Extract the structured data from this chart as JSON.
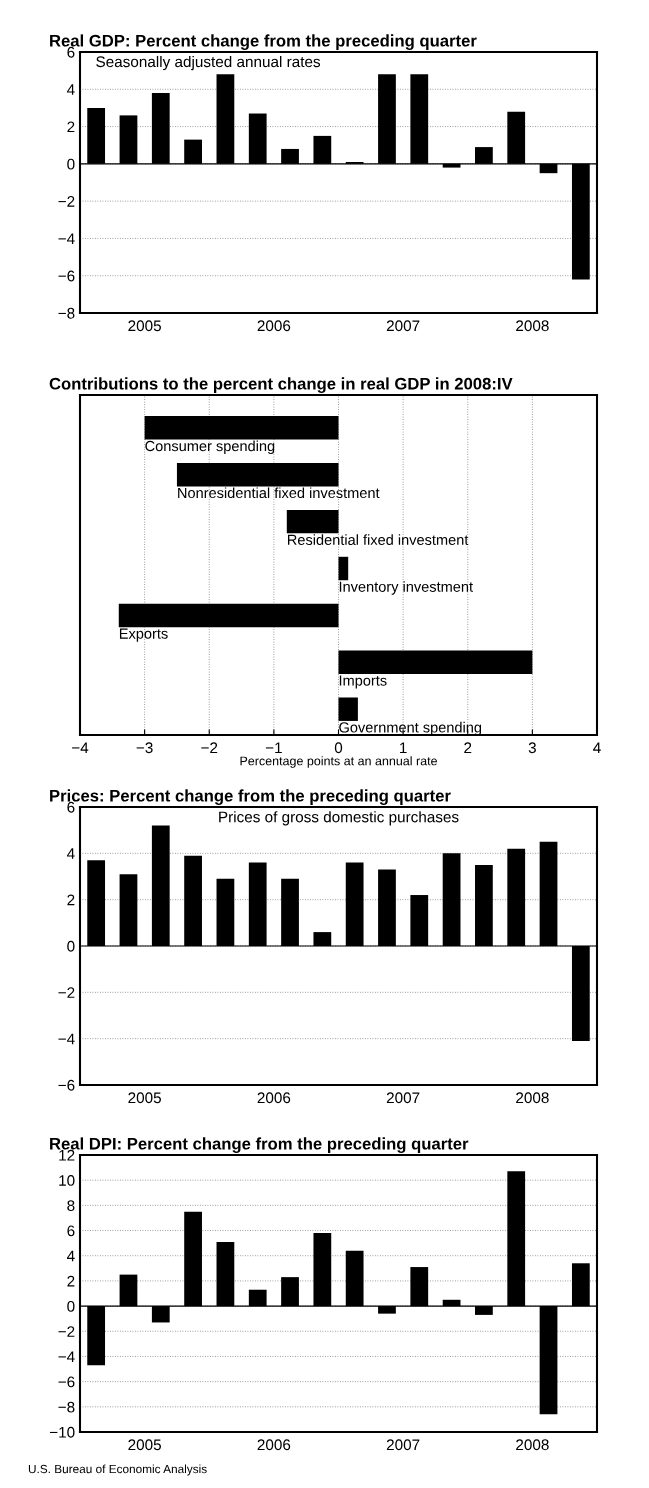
{
  "chart_data": [
    {
      "type": "bar",
      "title": "Real GDP: Percent change from the preceding quarter",
      "annotations": [
        "Seasonally adjusted annual rates"
      ],
      "x": [
        2005.125,
        2005.375,
        2005.625,
        2005.875,
        2006.125,
        2006.375,
        2006.625,
        2006.875,
        2007.125,
        2007.375,
        2007.625,
        2007.875,
        2008.125,
        2008.375,
        2008.625,
        2008.875
      ],
      "values": [
        3.0,
        2.6,
        3.8,
        1.3,
        4.8,
        2.7,
        0.8,
        1.5,
        0.1,
        4.8,
        4.8,
        -0.2,
        0.9,
        2.8,
        -0.5,
        -6.2
      ],
      "color": "#000000",
      "xlim": [
        2005,
        2009
      ],
      "xticks": [
        {
          "value": 2005.5,
          "label": "2005"
        },
        {
          "value": 2006.5,
          "label": "2006"
        },
        {
          "value": 2007.5,
          "label": "2007"
        },
        {
          "value": 2008.5,
          "label": "2008"
        }
      ],
      "ylim": [
        -8,
        6
      ],
      "yticks": [
        -8,
        -6,
        -4,
        -2,
        0,
        2,
        4,
        6
      ],
      "grid": "y",
      "legend": false
    },
    {
      "type": "bar",
      "orientation": "horizontal",
      "title": "Contributions to the percent change in real GDP in 2008:IV",
      "xlabel": "Percentage points at an annual rate",
      "categories": [
        "Consumer spending",
        "Nonresidential fixed investment",
        "Residential fixed investment",
        "Inventory investment",
        "Exports",
        "Imports",
        "Government spending"
      ],
      "values": [
        -3.0,
        -2.5,
        -0.8,
        0.15,
        -3.4,
        3.0,
        0.3
      ],
      "color": "#000000",
      "xlim": [
        -4,
        4
      ],
      "xticks": [
        -4,
        -3,
        -2,
        -1,
        0,
        1,
        2,
        3,
        4
      ],
      "grid": "x",
      "tick_labels": "x",
      "legend": false
    },
    {
      "type": "bar",
      "title": "Prices: Percent change from the preceding quarter",
      "annotations": [
        "Prices of gross domestic purchases"
      ],
      "x": [
        2005.125,
        2005.375,
        2005.625,
        2005.875,
        2006.125,
        2006.375,
        2006.625,
        2006.875,
        2007.125,
        2007.375,
        2007.625,
        2007.875,
        2008.125,
        2008.375,
        2008.625,
        2008.875
      ],
      "values": [
        3.7,
        3.1,
        5.2,
        3.9,
        2.9,
        3.6,
        2.9,
        0.6,
        3.6,
        3.3,
        2.2,
        4.0,
        3.5,
        4.2,
        4.5,
        -4.1
      ],
      "color": "#000000",
      "xlim": [
        2005,
        2009
      ],
      "xticks": [
        {
          "value": 2005.5,
          "label": "2005"
        },
        {
          "value": 2006.5,
          "label": "2006"
        },
        {
          "value": 2007.5,
          "label": "2007"
        },
        {
          "value": 2008.5,
          "label": "2008"
        }
      ],
      "ylim": [
        -6,
        6
      ],
      "yticks": [
        -6,
        -4,
        -2,
        0,
        2,
        4,
        6
      ],
      "grid": "y",
      "legend": false
    },
    {
      "type": "bar",
      "title": "Real DPI: Percent change from the preceding quarter",
      "annotations": [
        "U.S. Bureau of Economic Analysis"
      ],
      "x": [
        2005.125,
        2005.375,
        2005.625,
        2005.875,
        2006.125,
        2006.375,
        2006.625,
        2006.875,
        2007.125,
        2007.375,
        2007.625,
        2007.875,
        2008.125,
        2008.375,
        2008.625,
        2008.875
      ],
      "values": [
        -4.7,
        2.5,
        -1.3,
        7.5,
        5.1,
        1.3,
        2.3,
        5.8,
        4.4,
        -0.6,
        3.1,
        0.5,
        -0.7,
        10.7,
        -8.6,
        3.4
      ],
      "color": "#000000",
      "xlim": [
        2005,
        2009
      ],
      "xticks": [
        {
          "value": 2005.5,
          "label": "2005"
        },
        {
          "value": 2006.5,
          "label": "2006"
        },
        {
          "value": 2007.5,
          "label": "2007"
        },
        {
          "value": 2008.5,
          "label": "2008"
        }
      ],
      "ylim": [
        -10,
        12
      ],
      "yticks": [
        -10,
        -8,
        -6,
        -4,
        -2,
        0,
        2,
        4,
        6,
        8,
        10,
        12
      ],
      "grid": "y",
      "legend": false
    }
  ]
}
